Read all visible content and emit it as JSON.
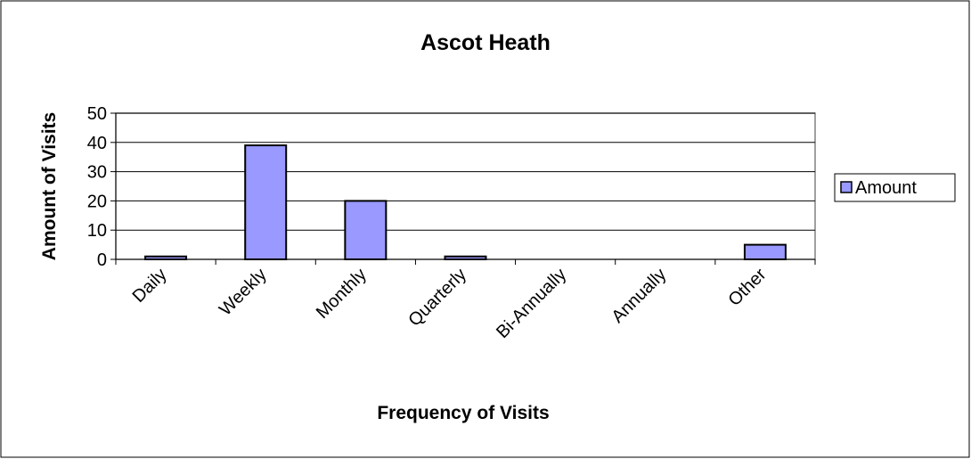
{
  "chart_data": {
    "type": "bar",
    "title": "Ascot Heath",
    "x_label": "Frequency of Visits",
    "y_label": "Amount of Visits",
    "categories": [
      "Daily",
      "Weekly",
      "Monthly",
      "Quarterly",
      "Bi-Annually",
      "Annually",
      "Other"
    ],
    "series": [
      {
        "name": "Amount",
        "color": "#9999ff",
        "values": [
          1,
          39,
          20,
          1,
          0,
          0,
          5
        ]
      }
    ],
    "ylim": [
      0,
      50
    ],
    "yticks": [
      0,
      10,
      20,
      30,
      40,
      50
    ],
    "grid": true,
    "legend": "right"
  }
}
